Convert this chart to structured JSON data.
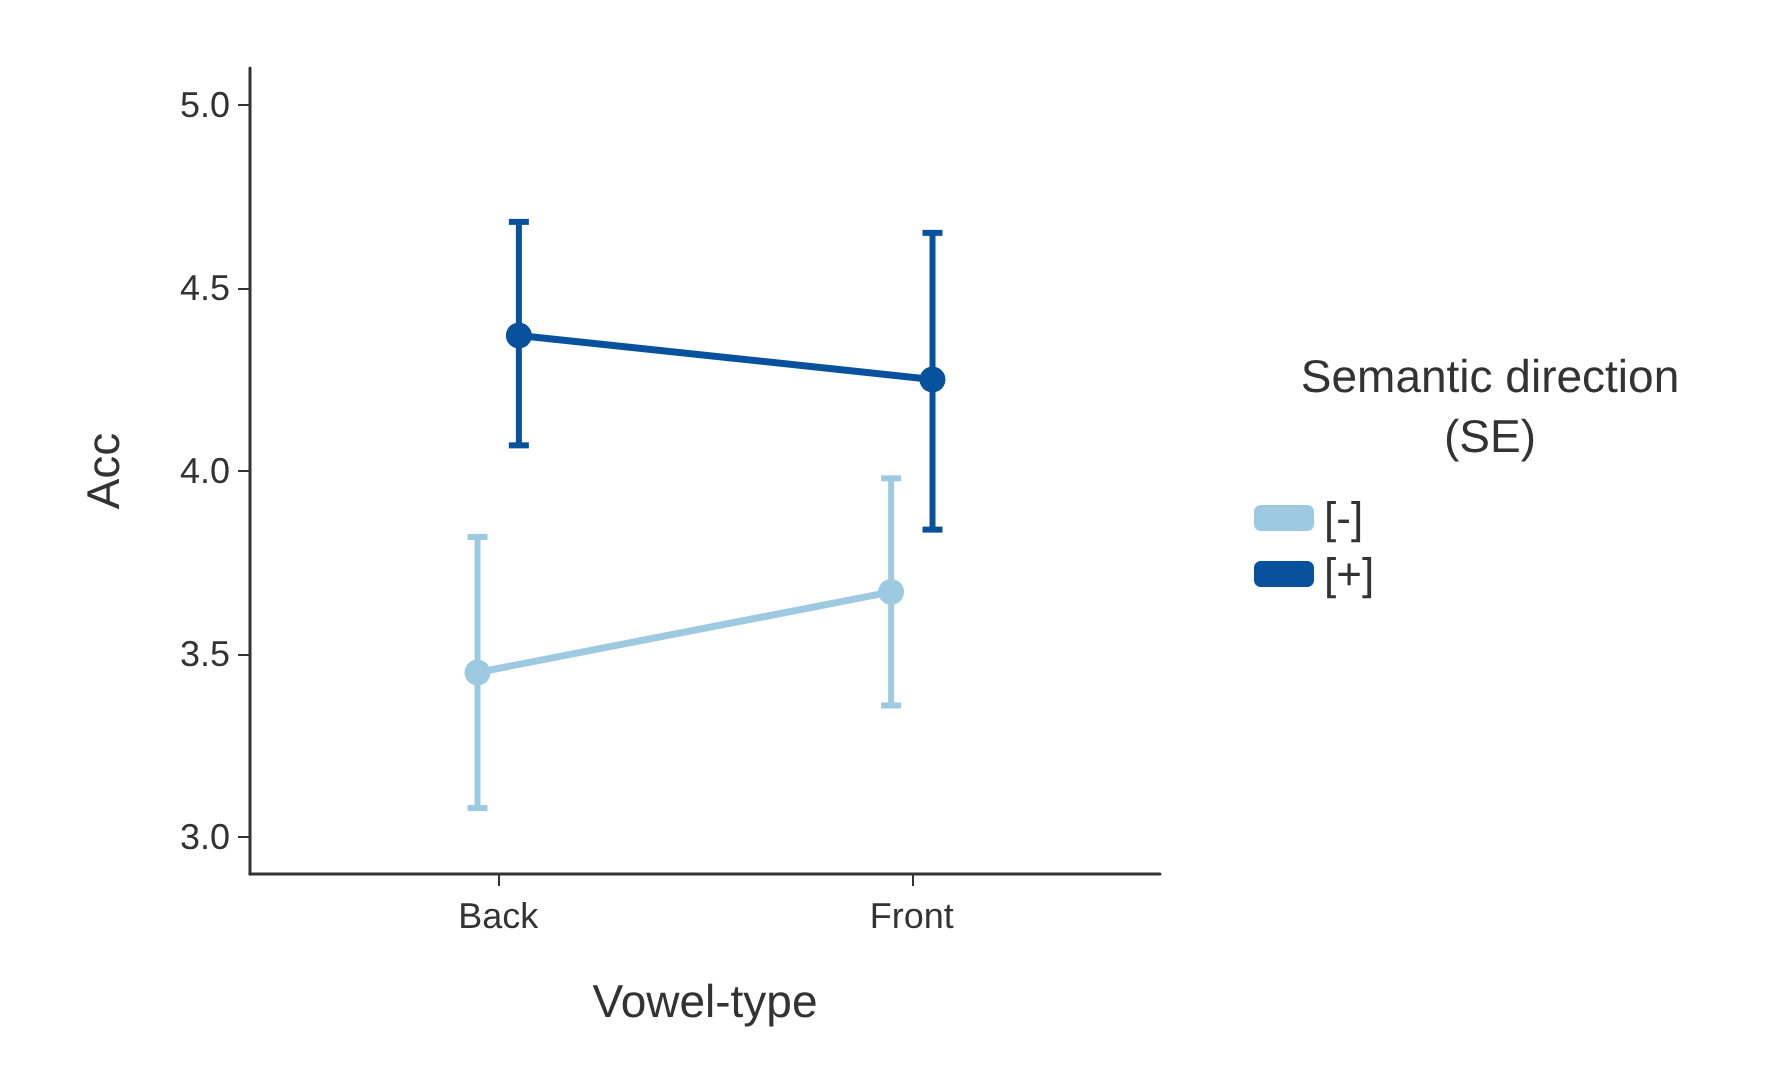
{
  "chart_data": {
    "type": "line",
    "categories": [
      "Back",
      "Front"
    ],
    "xlabel": "Vowel-type",
    "ylabel": "Acc",
    "legend_title": "Semantic direction\n(SE)",
    "series": [
      {
        "name": "[-]",
        "color": "#9ecae1",
        "values": [
          3.45,
          3.67
        ],
        "errors": [
          [
            3.08,
            3.82
          ],
          [
            3.36,
            3.98
          ]
        ]
      },
      {
        "name": "[+]",
        "color": "#08519c",
        "values": [
          4.37,
          4.25
        ],
        "errors": [
          [
            4.07,
            4.68
          ],
          [
            3.84,
            4.65
          ]
        ]
      }
    ],
    "ylim": [
      2.9,
      5.1
    ],
    "yticks": [
      {
        "value": 3,
        "label": "3.0"
      },
      3.5,
      {
        "value": 4,
        "label": "4.0"
      },
      4.5,
      {
        "value": 5,
        "label": "5.0"
      }
    ],
    "grid": false,
    "legend": "right",
    "marker": "circle",
    "line_style": "solid"
  }
}
